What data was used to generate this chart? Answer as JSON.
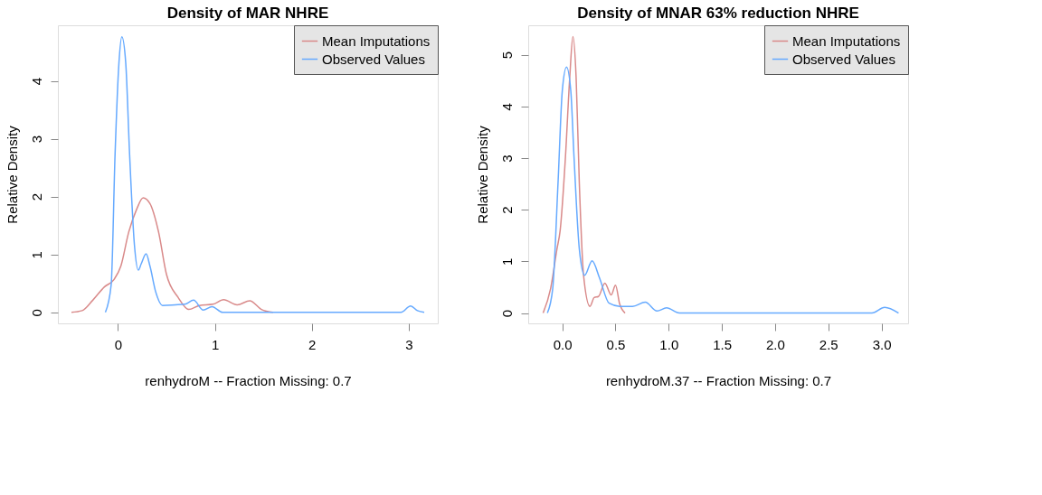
{
  "chart_data": [
    {
      "type": "line",
      "title": "Density of MAR NHRE",
      "xlabel": "renhydroM  --  Fraction Missing: 0.7",
      "ylabel": "Relative Density",
      "xlim": [
        -0.62,
        3.3
      ],
      "ylim": [
        -0.19,
        4.96
      ],
      "xticks": [
        0,
        1,
        2,
        3
      ],
      "yticks": [
        0,
        1,
        2,
        3,
        4
      ],
      "grid": false,
      "legend": "top right",
      "line_style": "solid",
      "marker": "none",
      "series": [
        {
          "name": "Mean Imputations",
          "color": "#d98a8a",
          "x": [
            -0.48,
            -0.37,
            -0.26,
            -0.14,
            -0.04,
            0.03,
            0.11,
            0.19,
            0.26,
            0.33,
            0.42,
            0.5,
            0.62,
            0.73,
            0.84,
            0.98,
            1.09,
            1.23,
            1.36,
            1.48,
            1.6
          ],
          "values": [
            0,
            0.03,
            0.21,
            0.44,
            0.57,
            0.8,
            1.38,
            1.77,
            1.98,
            1.88,
            1.38,
            0.66,
            0.26,
            0.05,
            0.12,
            0.14,
            0.22,
            0.13,
            0.2,
            0.05,
            0
          ]
        },
        {
          "name": "Observed Values",
          "color": "#66aaff",
          "x": [
            -0.13,
            -0.07,
            -0.03,
            0.01,
            0.04,
            0.08,
            0.12,
            0.17,
            0.21,
            0.24,
            0.29,
            0.33,
            0.39,
            0.46,
            0.59,
            0.69,
            0.78,
            0.88,
            0.97,
            1.08,
            1.6,
            2.92,
            3.02,
            3.09,
            3.16
          ],
          "values": [
            0,
            0.48,
            2.73,
            4.31,
            4.76,
            4.31,
            2.73,
            1.16,
            0.73,
            0.84,
            1.01,
            0.8,
            0.35,
            0.12,
            0.13,
            0.14,
            0.21,
            0.04,
            0.1,
            0,
            0,
            0,
            0.11,
            0.03,
            0
          ]
        }
      ]
    },
    {
      "type": "line",
      "title": "Density of MNAR 63% reduction NHRE",
      "xlabel": "renhydroM.37  --  Fraction Missing: 0.7",
      "ylabel": "Relative Density",
      "xlim": [
        -0.32,
        3.25
      ],
      "ylim": [
        -0.2,
        5.57
      ],
      "xticks": [
        {
          "value": 0,
          "label": "0.0"
        },
        0.5,
        {
          "value": 1,
          "label": "1.0"
        },
        1.5,
        {
          "value": 2,
          "label": "2.0"
        },
        2.5,
        {
          "value": 3,
          "label": "3.0"
        }
      ],
      "yticks": [
        0,
        1,
        2,
        3,
        4,
        5
      ],
      "grid": false,
      "legend": "top right",
      "line_style": "solid",
      "marker": "none",
      "series": [
        {
          "name": "Mean Imputations",
          "color": "#d98a8a",
          "x": [
            -0.18,
            -0.11,
            -0.05,
            -0.02,
            0.03,
            0.07,
            0.1,
            0.13,
            0.16,
            0.2,
            0.26,
            0.3,
            0.34,
            0.4,
            0.46,
            0.5,
            0.54,
            0.59
          ],
          "values": [
            0,
            0.47,
            1.24,
            1.6,
            3.03,
            4.56,
            5.35,
            4.56,
            2.52,
            0.73,
            0.13,
            0.3,
            0.32,
            0.58,
            0.35,
            0.54,
            0.17,
            0
          ]
        },
        {
          "name": "Observed Values",
          "color": "#66aaff",
          "x": [
            -0.14,
            -0.09,
            -0.04,
            0.0,
            0.04,
            0.08,
            0.11,
            0.16,
            0.21,
            0.28,
            0.35,
            0.44,
            0.54,
            0.66,
            0.78,
            0.89,
            0.98,
            1.1,
            2.91,
            3.03,
            3.16
          ],
          "values": [
            0,
            0.47,
            2.52,
            4.3,
            4.76,
            4.3,
            3.03,
            1.24,
            0.73,
            1.01,
            0.68,
            0.19,
            0.13,
            0.13,
            0.21,
            0.04,
            0.1,
            0,
            0,
            0.11,
            0
          ]
        }
      ]
    }
  ]
}
